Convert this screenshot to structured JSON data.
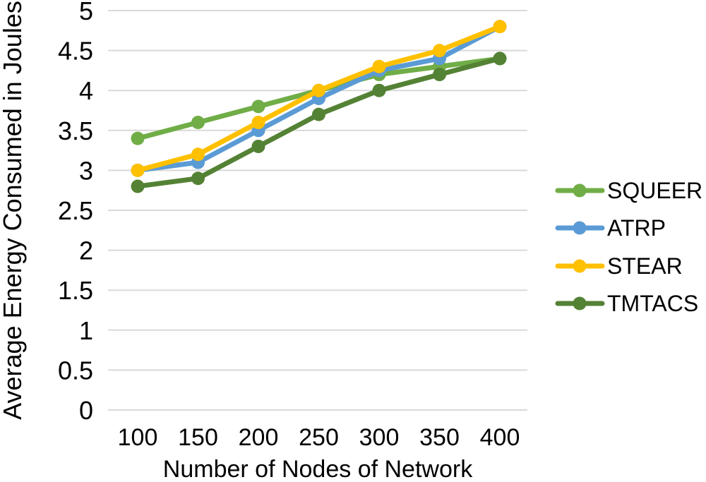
{
  "chart_data": {
    "type": "line",
    "title": "",
    "xlabel": "Number of Nodes of Network",
    "ylabel": "Average Energy Consumed in Joules",
    "x": [
      100,
      150,
      200,
      250,
      300,
      350,
      400
    ],
    "x_tick_labels": [
      "100",
      "150",
      "200",
      "250",
      "300",
      "350",
      "400"
    ],
    "y_ticks": [
      0,
      0.5,
      1,
      1.5,
      2,
      2.5,
      3,
      3.5,
      4,
      4.5,
      5
    ],
    "y_tick_labels": [
      "0",
      "0.5",
      "1",
      "1.5",
      "2",
      "2.5",
      "3",
      "3.5",
      "4",
      "4.5",
      "5"
    ],
    "xlim": [
      100,
      400
    ],
    "ylim": [
      0,
      5
    ],
    "grid": "horizontal-only",
    "legend_position": "right",
    "gridline_color": "#D9D9D9",
    "text_color": "#000000",
    "background_color": "#FFFFFF",
    "series": [
      {
        "name": "SQUEER",
        "color": "#70AD47",
        "marker": "circle",
        "values": [
          3.4,
          3.6,
          3.8,
          4.0,
          4.2,
          4.3,
          4.4
        ]
      },
      {
        "name": "ATRP",
        "color": "#5B9BD5",
        "marker": "circle",
        "values": [
          3.0,
          3.1,
          3.5,
          3.9,
          4.25,
          4.4,
          4.8
        ]
      },
      {
        "name": "STEAR",
        "color": "#FFC000",
        "marker": "circle",
        "values": [
          3.0,
          3.2,
          3.6,
          4.0,
          4.3,
          4.5,
          4.8
        ]
      },
      {
        "name": "TMTACS",
        "color": "#548235",
        "marker": "circle",
        "values": [
          2.8,
          2.9,
          3.3,
          3.7,
          4.0,
          4.2,
          4.4
        ]
      }
    ]
  }
}
